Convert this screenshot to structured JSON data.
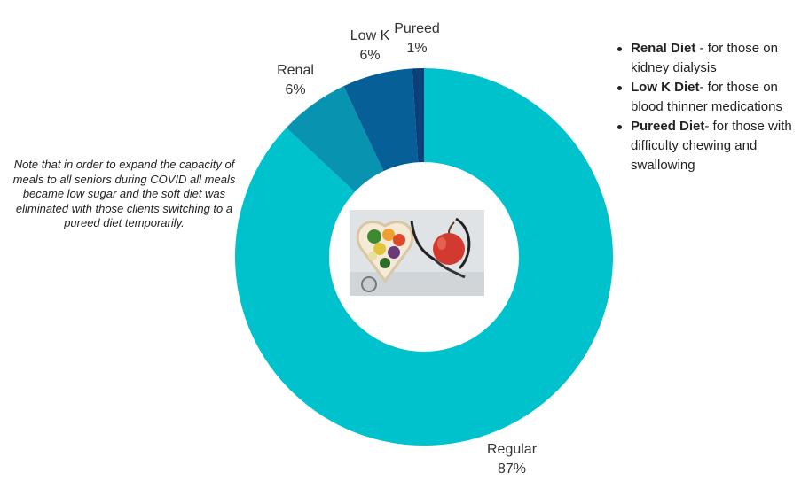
{
  "chart_data": {
    "type": "pie",
    "donut": true,
    "categories": [
      "Regular",
      "Renal",
      "Low K",
      "Pureed"
    ],
    "values": [
      87,
      6,
      6,
      1
    ],
    "value_labels": [
      "87%",
      "6%",
      "6%",
      "1%"
    ],
    "colors": [
      "#00c2cc",
      "#0893b0",
      "#065f96",
      "#0b3f78"
    ],
    "title": "",
    "legend_placement": "none"
  },
  "note": "Note that in order to expand the capacity of meals to all seniors during COVID all meals became low sugar and the soft diet was eliminated with those clients switching to a pureed diet temporarily.",
  "legend": [
    {
      "name": "Renal Diet",
      "desc": " - for those on kidney dialysis"
    },
    {
      "name": "Low K Diet",
      "desc": "- for those on blood thinner medications"
    },
    {
      "name": "Pureed Diet",
      "desc": "- for those with difficulty chewing and swallowing"
    }
  ],
  "center_image": {
    "icon": "heart-bowl-healthy-food-with-apple-and-stethoscope-photo"
  }
}
